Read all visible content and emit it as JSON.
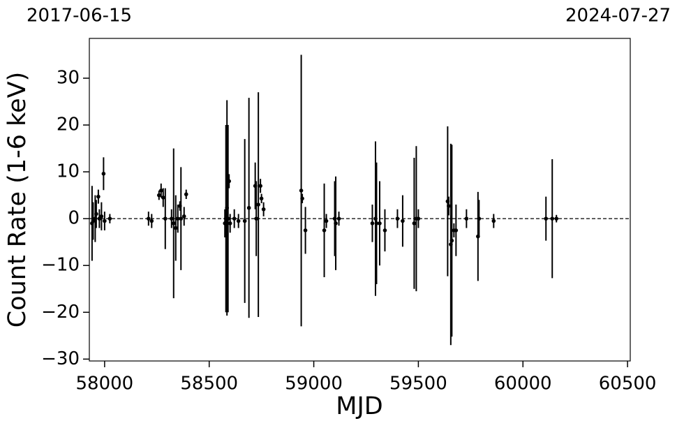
{
  "chart_data": {
    "type": "errorbar",
    "top_left_label": "2017-06-15",
    "top_right_label": "2024-07-27",
    "xlabel": "MJD",
    "ylabel": "Count Rate (1-6 keV)",
    "xlim": [
      57927,
      60513
    ],
    "ylim": [
      -30.4,
      38.5
    ],
    "xticks": [
      58000,
      58500,
      59000,
      59500,
      60000,
      60500
    ],
    "yticks": [
      {
        "value": -30,
        "label": "−30"
      },
      {
        "value": -20,
        "label": "−20"
      },
      {
        "value": -10,
        "label": "−10"
      },
      0,
      10,
      20,
      30
    ],
    "hline": 0,
    "color": "#000000",
    "x": [
      57940,
      57945,
      57955,
      57960,
      57970,
      57975,
      57985,
      57995,
      58000,
      58025,
      58210,
      58225,
      58260,
      58270,
      58280,
      58290,
      58320,
      58330,
      58340,
      58350,
      58360,
      58365,
      58380,
      58390,
      58575,
      58580,
      58585,
      58590,
      58595,
      58600,
      58620,
      58640,
      58670,
      58690,
      58720,
      58725,
      58735,
      58745,
      58750,
      58760,
      58940,
      58945,
      58960,
      59050,
      59060,
      59100,
      59105,
      59120,
      59280,
      59295,
      59300,
      59315,
      59340,
      59400,
      59425,
      59480,
      59490,
      59500,
      59640,
      59645,
      59655,
      59660,
      59670,
      59680,
      59730,
      59785,
      59790,
      59860,
      60110,
      60140,
      60160
    ],
    "values": [
      -1,
      -0.5,
      0,
      1,
      4.7,
      0,
      0.5,
      9.6,
      -0.5,
      0,
      0,
      -0.5,
      5,
      6,
      4.5,
      0,
      0,
      -1,
      -2,
      0,
      2.7,
      0,
      0.5,
      5.2,
      -1,
      0,
      2.3,
      0,
      8,
      -1,
      0,
      -0.5,
      -0.5,
      2.3,
      7,
      0,
      3,
      7,
      4.3,
      2,
      6,
      4.3,
      -2.5,
      -2.5,
      -0.5,
      0,
      -1,
      0,
      -1,
      0,
      -1,
      -1,
      -2.5,
      0,
      -0.5,
      -1,
      0,
      0,
      3.7,
      2.7,
      -5.5,
      -4.7,
      -2.5,
      -2.5,
      0,
      -3.8,
      0,
      -0.5,
      0,
      0,
      0
    ],
    "errors": [
      8,
      4,
      5,
      3,
      1.5,
      2,
      3,
      3.5,
      2,
      1,
      1.5,
      1.5,
      1,
      1.5,
      2,
      6.5,
      2,
      16,
      7,
      3,
      1,
      11,
      2,
      1,
      3,
      20,
      23,
      20,
      1.5,
      2,
      2,
      1.5,
      17.5,
      23.5,
      5,
      8,
      24,
      1.5,
      1,
      1.5,
      29,
      1,
      5,
      10,
      1.5,
      8,
      10,
      1.5,
      4,
      16.5,
      13,
      9,
      4.5,
      2,
      5.5,
      14,
      15.5,
      2,
      16,
      2,
      21.5,
      20.5,
      1.5,
      5.5,
      2,
      9.5,
      4,
      1.5,
      4.7,
      12.7,
      0.8
    ]
  }
}
